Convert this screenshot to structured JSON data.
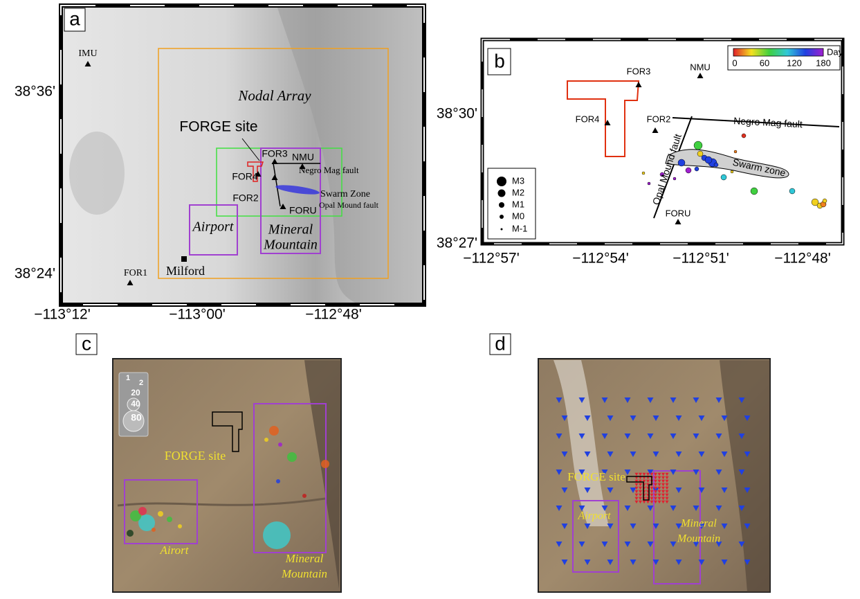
{
  "panel_a": {
    "label": "a",
    "y_axis": [
      "38°36'",
      "38°24'"
    ],
    "x_axis": [
      "−113°12'",
      "−113°00'",
      "−112°48'"
    ],
    "labels": [
      "IMU",
      "Nodal Array",
      "FORGE site",
      "FOR3",
      "NMU",
      "FOR4",
      "Negro Mag fault",
      "FOR2",
      "Swarm Zone",
      "Opal Mound fault",
      "FORU",
      "Airport",
      "Mineral",
      "Mountain",
      "Milford",
      "FOR1"
    ]
  },
  "panel_b": {
    "label": "b",
    "y_axis": [
      "38°30'",
      "38°27'"
    ],
    "x_axis": [
      "−112°57'",
      "−112°54'",
      "−112°51'",
      "−112°48'"
    ],
    "labels": [
      "FOR3",
      "NMU",
      "FOR4",
      "FOR2",
      "Negro Mag fault",
      "Opal Mound fault",
      "Swarm zone",
      "FORU"
    ],
    "magnitude_legend": [
      "M3",
      "M2",
      "M1",
      "M0",
      "M-1"
    ],
    "colorbar": {
      "ticks": [
        "0",
        "60",
        "120",
        "180"
      ],
      "title": "Day"
    }
  },
  "panel_c": {
    "label": "c",
    "size_legend": [
      "1",
      "2",
      "20",
      "40",
      "80"
    ],
    "labels": [
      "FORGE site",
      "Airort",
      "Mineral",
      "Mountain"
    ]
  },
  "panel_d": {
    "label": "d",
    "labels": [
      "FORGE site",
      "Airport",
      "Mineral",
      "Mountain"
    ]
  }
}
